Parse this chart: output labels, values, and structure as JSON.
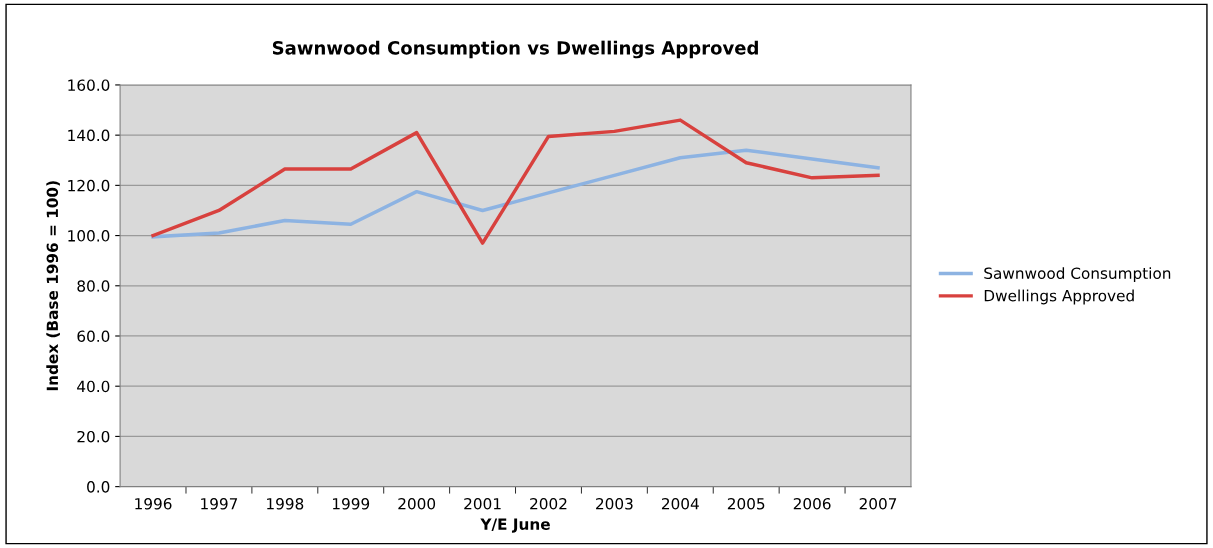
{
  "chart_data": {
    "type": "line",
    "title": "Sawnwood Consumption vs Dwellings Approved",
    "xlabel": "Y/E June",
    "ylabel": "Index (Base 1996 = 100)",
    "categories": [
      "1996",
      "1997",
      "1998",
      "1999",
      "2000",
      "2001",
      "2002",
      "2003",
      "2004",
      "2005",
      "2006",
      "2007"
    ],
    "series": [
      {
        "name": "Sawnwood Consumption",
        "color": "#8db3e2",
        "values": [
          99.5,
          101,
          106,
          104.5,
          117.5,
          110,
          117,
          124,
          131,
          134,
          130.5,
          127
        ]
      },
      {
        "name": "Dwellings Approved",
        "color": "#d8413e",
        "values": [
          100,
          110,
          126.5,
          126.5,
          141,
          97,
          139.5,
          141.5,
          146,
          129,
          123,
          124
        ]
      }
    ],
    "ylim": [
      0,
      160
    ],
    "yticks": [
      {
        "value": 0,
        "label": "0.0"
      },
      {
        "value": 20,
        "label": "20.0"
      },
      {
        "value": 40,
        "label": "40.0"
      },
      {
        "value": 60,
        "label": "60.0"
      },
      {
        "value": 80,
        "label": "80.0"
      },
      {
        "value": 100,
        "label": "100.0"
      },
      {
        "value": 120,
        "label": "120.0"
      },
      {
        "value": 140,
        "label": "140.0"
      },
      {
        "value": 160,
        "label": "160.0"
      }
    ],
    "grid": "y",
    "legend": "right",
    "marker": "none",
    "line_style": "solid"
  }
}
